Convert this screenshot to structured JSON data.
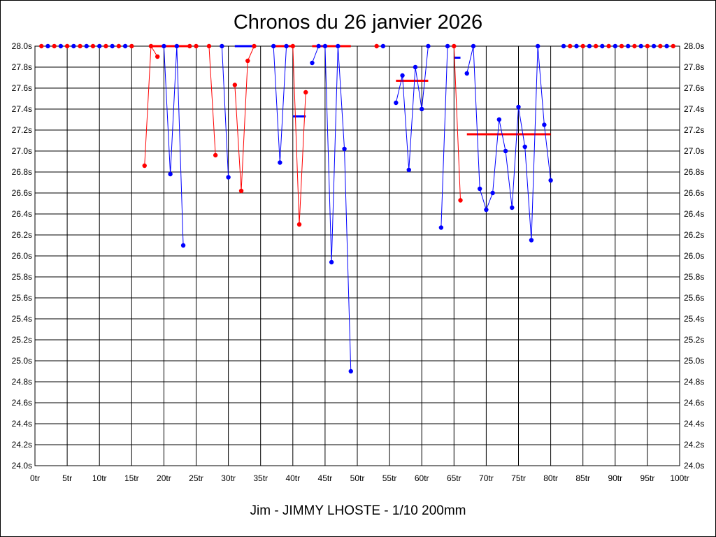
{
  "chart_data": {
    "type": "line",
    "title": "Chronos du 26 janvier 2026",
    "footer": "Jim - JIMMY LHOSTE - 1/10 200mm",
    "xlim": [
      0,
      100
    ],
    "ylim": [
      24.0,
      28.0
    ],
    "x_tick_labels": [
      "0tr",
      "5tr",
      "10tr",
      "15tr",
      "20tr",
      "25tr",
      "30tr",
      "35tr",
      "40tr",
      "45tr",
      "50tr",
      "55tr",
      "60tr",
      "65tr",
      "70tr",
      "75tr",
      "80tr",
      "85tr",
      "90tr",
      "95tr",
      "100tr"
    ],
    "y_tick_labels": [
      "24.0s",
      "24.2s",
      "24.4s",
      "24.6s",
      "24.8s",
      "25.0s",
      "25.2s",
      "25.4s",
      "25.6s",
      "25.8s",
      "26.0s",
      "26.2s",
      "26.4s",
      "26.6s",
      "26.8s",
      "27.0s",
      "27.2s",
      "27.4s",
      "27.6s",
      "27.8s",
      "28.0s"
    ],
    "grid": true,
    "colors": {
      "red": "#ff0000",
      "blue": "#0000ff"
    },
    "series": [
      {
        "color": "red",
        "x": [
          1,
          3,
          5,
          7,
          9,
          11,
          13,
          15
        ],
        "y": [
          28.0,
          28.0,
          28.0,
          28.0,
          28.0,
          28.0,
          28.0,
          28.0
        ],
        "markers_only": true
      },
      {
        "color": "blue",
        "x": [
          2,
          4,
          6,
          8,
          10,
          12,
          14
        ],
        "y": [
          28.0,
          28.0,
          28.0,
          28.0,
          28.0,
          28.0,
          28.0
        ],
        "markers_only": true
      },
      {
        "color": "red",
        "x": [
          17,
          18,
          19
        ],
        "y": [
          26.86,
          28.0,
          27.9
        ]
      },
      {
        "color": "blue",
        "x": [
          20,
          21,
          22,
          23
        ],
        "y": [
          28.0,
          26.78,
          28.0,
          26.1
        ]
      },
      {
        "color": "red",
        "x": [
          24,
          25
        ],
        "y": [
          28.0,
          28.0
        ],
        "markers_only": true
      },
      {
        "color": "red",
        "x": [
          27,
          28
        ],
        "y": [
          28.0,
          26.96
        ]
      },
      {
        "color": "blue",
        "x": [
          29,
          30
        ],
        "y": [
          28.0,
          26.75
        ]
      },
      {
        "color": "red",
        "x": [
          31,
          32,
          33,
          34
        ],
        "y": [
          27.63,
          26.62,
          27.86,
          28.0
        ]
      },
      {
        "color": "blue",
        "x": [
          37,
          38,
          39
        ],
        "y": [
          28.0,
          26.89,
          28.0
        ]
      },
      {
        "color": "red",
        "x": [
          40,
          41,
          42
        ],
        "y": [
          28.0,
          26.3,
          27.56
        ]
      },
      {
        "color": "blue",
        "x": [
          43,
          44,
          45,
          46,
          47,
          48,
          49
        ],
        "y": [
          27.84,
          28.0,
          28.0,
          25.94,
          28.0,
          27.02,
          24.9
        ]
      },
      {
        "color": "red",
        "x": [
          53
        ],
        "y": [
          28.0
        ],
        "markers_only": true
      },
      {
        "color": "blue",
        "x": [
          54
        ],
        "y": [
          28.0
        ],
        "markers_only": true
      },
      {
        "color": "blue",
        "x": [
          56,
          57,
          58,
          59,
          60,
          61
        ],
        "y": [
          27.46,
          27.72,
          26.82,
          27.8,
          27.4,
          28.0
        ]
      },
      {
        "color": "blue",
        "x": [
          63,
          64
        ],
        "y": [
          26.27,
          28.0
        ]
      },
      {
        "color": "red",
        "x": [
          65,
          66
        ],
        "y": [
          28.0,
          26.53
        ]
      },
      {
        "color": "blue",
        "x": [
          67,
          68,
          69,
          70,
          71,
          72,
          73,
          74,
          75,
          76,
          77,
          78,
          79,
          80
        ],
        "y": [
          27.74,
          28.0,
          26.64,
          26.44,
          26.6,
          27.3,
          27.0,
          26.46,
          27.42,
          27.04,
          26.15,
          28.0,
          27.25,
          26.72
        ]
      },
      {
        "color": "blue",
        "x": [
          82,
          84,
          86,
          88,
          90,
          92,
          94,
          96,
          98
        ],
        "y": [
          28.0,
          28.0,
          28.0,
          28.0,
          28.0,
          28.0,
          28.0,
          28.0,
          28.0
        ],
        "markers_only": true
      },
      {
        "color": "red",
        "x": [
          83,
          85,
          87,
          89,
          91,
          93,
          95,
          97,
          99
        ],
        "y": [
          28.0,
          28.0,
          28.0,
          28.0,
          28.0,
          28.0,
          28.0,
          28.0,
          28.0
        ],
        "markers_only": true
      }
    ],
    "average_segments": [
      {
        "color": "red",
        "x": [
          18,
          24
        ],
        "y": 28.0
      },
      {
        "color": "blue",
        "x": [
          31,
          34
        ],
        "y": 28.0
      },
      {
        "color": "red",
        "x": [
          37,
          40
        ],
        "y": 28.0
      },
      {
        "color": "blue",
        "x": [
          40,
          42
        ],
        "y": 27.33
      },
      {
        "color": "red",
        "x": [
          43,
          49
        ],
        "y": 28.0
      },
      {
        "color": "red",
        "x": [
          56,
          61
        ],
        "y": 27.67
      },
      {
        "color": "blue",
        "x": [
          65,
          66
        ],
        "y": 27.89
      },
      {
        "color": "red",
        "x": [
          67,
          80
        ],
        "y": 27.16
      }
    ]
  }
}
